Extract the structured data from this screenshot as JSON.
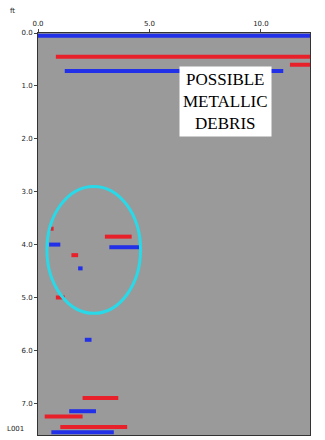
{
  "chart_data": {
    "type": "line",
    "ylabel": "ft",
    "annotations": [
      "POSSIBLE METALLIC DEBRIS",
      "L001"
    ],
    "xlim": [
      0,
      12.2
    ],
    "ylim": [
      0,
      7.6
    ],
    "xticks": [
      {
        "value": 0,
        "label": "0.0"
      },
      {
        "value": 5,
        "label": "5.0"
      },
      {
        "value": 10,
        "label": "10.0"
      }
    ],
    "yticks": [
      {
        "value": 0,
        "label": "0.0"
      },
      {
        "value": 1,
        "label": "1.0"
      },
      {
        "value": 2,
        "label": "2.0"
      },
      {
        "value": 3,
        "label": "3.0"
      },
      {
        "value": 4,
        "label": "4.0"
      },
      {
        "value": 5,
        "label": "5.0"
      },
      {
        "value": 6,
        "label": "6.0"
      },
      {
        "value": 7,
        "label": "7.0"
      }
    ],
    "grid": false,
    "highlight": {
      "x": [
        0.4,
        4.6
      ],
      "y": [
        2.9,
        5.3
      ],
      "color": "#29d9e8"
    },
    "series": [
      {
        "color": "#e8202a",
        "x": [
          0.8,
          12.2,
          null,
          11.3,
          12.2,
          null,
          3.0,
          4.2,
          null,
          0.5,
          0.7,
          null,
          1.5,
          1.8,
          null,
          0.8,
          1.2,
          null,
          2.0,
          3.6,
          null,
          0.3,
          2.0,
          null,
          1.0,
          4.0
        ],
        "y": [
          0.45,
          0.45,
          null,
          0.6,
          0.6,
          null,
          3.85,
          3.85,
          null,
          3.7,
          3.7,
          null,
          4.2,
          4.2,
          null,
          5.0,
          5.0,
          null,
          6.9,
          6.9,
          null,
          7.25,
          7.25,
          null,
          7.45,
          7.45
        ]
      },
      {
        "color": "#2230e8",
        "x": [
          0,
          12.2,
          null,
          1.2,
          11.0,
          null,
          3.2,
          4.6,
          null,
          0.5,
          1.0,
          null,
          1.8,
          2.0,
          null,
          2.1,
          2.4,
          null,
          1.4,
          2.6,
          null,
          0.6,
          3.4
        ],
        "y": [
          0.05,
          0.05,
          null,
          0.72,
          0.72,
          null,
          4.05,
          4.05,
          null,
          4.0,
          4.0,
          null,
          4.45,
          4.45,
          null,
          5.8,
          5.8,
          null,
          7.15,
          7.15,
          null,
          7.55,
          7.55
        ]
      }
    ]
  }
}
